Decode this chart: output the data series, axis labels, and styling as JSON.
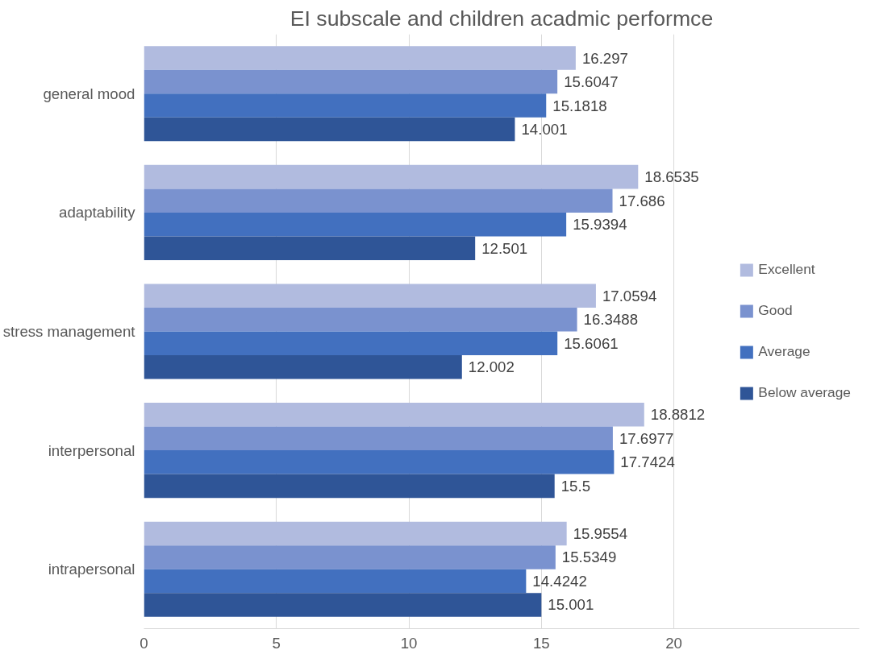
{
  "chart_data": {
    "type": "bar",
    "orientation": "horizontal",
    "title": "EI subscale and children acadmic performce",
    "categories": [
      "general mood",
      "adaptability",
      "stress management",
      "interpersonal",
      "intrapersonal"
    ],
    "series": [
      {
        "name": "Excellent",
        "color": "#b1bbdf",
        "values": [
          16.297,
          18.6535,
          17.0594,
          18.8812,
          15.9554
        ]
      },
      {
        "name": "Good",
        "color": "#7a92cf",
        "values": [
          15.6047,
          17.686,
          16.3488,
          17.6977,
          15.5349
        ]
      },
      {
        "name": "Average",
        "color": "#4270bf",
        "values": [
          15.1818,
          15.9394,
          15.6061,
          17.7424,
          14.4242
        ]
      },
      {
        "name": "Below average",
        "color": "#2f5597",
        "values": [
          14.001,
          12.501,
          12.002,
          15.5,
          15.001
        ]
      }
    ],
    "xlim": [
      0,
      27
    ],
    "xticks": [
      0,
      5,
      10,
      15,
      20
    ],
    "grid": "x",
    "legend": "right",
    "data_labels": true
  }
}
